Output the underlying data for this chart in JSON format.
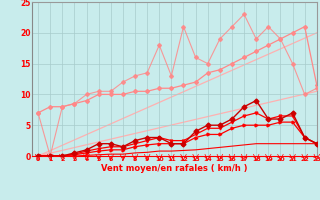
{
  "x": [
    0,
    1,
    2,
    3,
    4,
    5,
    6,
    7,
    8,
    9,
    10,
    11,
    12,
    13,
    14,
    15,
    16,
    17,
    18,
    19,
    20,
    21,
    22,
    23
  ],
  "bg_color": "#C8ECEC",
  "grid_color": "#A8CCCC",
  "xlabel": "Vent moyen/en rafales ( km/h )",
  "ylim": [
    0,
    25
  ],
  "xlim": [
    -0.5,
    23
  ],
  "yticks": [
    0,
    5,
    10,
    15,
    20,
    25
  ],
  "xticks": [
    0,
    1,
    2,
    3,
    4,
    5,
    6,
    7,
    8,
    9,
    10,
    11,
    12,
    13,
    14,
    15,
    16,
    17,
    18,
    19,
    20,
    21,
    22,
    23
  ],
  "diag1": [
    0,
    0.46,
    0.91,
    1.37,
    1.83,
    2.29,
    2.74,
    3.2,
    3.66,
    4.11,
    4.57,
    5.03,
    5.48,
    5.94,
    6.4,
    6.86,
    7.31,
    7.77,
    8.23,
    8.68,
    9.14,
    9.6,
    10.05,
    10.51
  ],
  "diag2": [
    0,
    0.87,
    1.74,
    2.61,
    3.48,
    4.35,
    5.22,
    6.09,
    6.96,
    7.83,
    8.7,
    9.57,
    10.43,
    11.3,
    12.17,
    13.04,
    13.91,
    14.78,
    15.65,
    16.52,
    17.39,
    18.26,
    19.13,
    20.0
  ],
  "pink_jagged": [
    7,
    0,
    8,
    8.5,
    10,
    10.5,
    10.5,
    12,
    13,
    13.5,
    18,
    13,
    21,
    16,
    15,
    19,
    21,
    23,
    19,
    21,
    19,
    15,
    10,
    11
  ],
  "pink_smooth": [
    7,
    8,
    8,
    8.5,
    9,
    10,
    10,
    10,
    10.5,
    10.5,
    11,
    11,
    11.5,
    12,
    13.5,
    14,
    15,
    16,
    17,
    18,
    19,
    20,
    21,
    11.5
  ],
  "red_jagged": [
    0,
    0,
    0,
    0.5,
    1,
    2,
    2,
    1.5,
    2.5,
    3,
    3,
    2,
    2,
    4,
    5,
    5,
    6,
    8,
    9,
    6,
    6,
    7,
    3,
    2
  ],
  "red_mid1": [
    0,
    0,
    0,
    0.3,
    0.8,
    1.2,
    1.5,
    1.5,
    2,
    2.5,
    3,
    2.5,
    2.5,
    3.5,
    4.5,
    4.5,
    5.5,
    6.5,
    7,
    6,
    6.5,
    6.5,
    3,
    2
  ],
  "red_mid2": [
    0,
    0,
    0,
    0.2,
    0.5,
    0.8,
    1,
    1,
    1.5,
    1.8,
    2,
    2,
    2,
    3,
    3.5,
    3.5,
    4.5,
    5,
    5,
    5,
    5.5,
    5.5,
    3,
    2
  ],
  "red_flat": [
    0,
    0,
    0,
    0,
    0.1,
    0.2,
    0.3,
    0.3,
    0.5,
    0.6,
    0.8,
    0.8,
    0.9,
    1,
    1.2,
    1.4,
    1.6,
    1.8,
    2,
    2,
    2,
    2,
    2,
    2
  ],
  "color_pink_light": "#FFB0B0",
  "color_pink_mid": "#FF8888",
  "color_red_bright": "#FF0000",
  "color_red_dark": "#CC0000"
}
